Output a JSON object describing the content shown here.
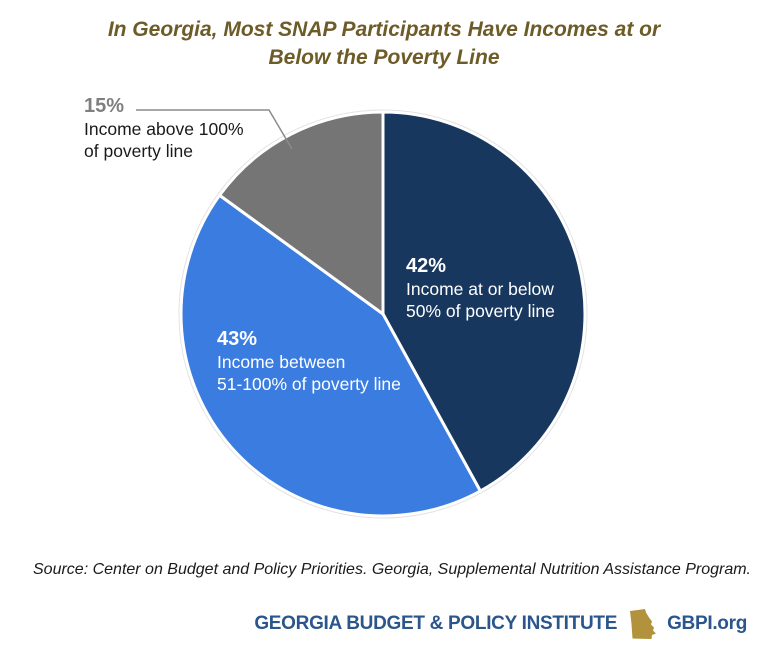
{
  "title": {
    "line1": "In Georgia, Most SNAP Participants Have Incomes at or",
    "line2": "Below the Poverty Line",
    "color": "#6d5b28"
  },
  "chart_data": {
    "type": "pie",
    "title": "In Georgia, Most SNAP Participants Have Incomes at or Below the Poverty Line",
    "start_angle_deg": 0,
    "direction": "clockwise",
    "divider_color": "#ffffff",
    "rim_color": "#e3e3e3",
    "slices": [
      {
        "id": "at-or-below-50",
        "value": 42,
        "pct_label": "42%",
        "label_lines": [
          "Income at or below",
          "50% of poverty line"
        ],
        "color": "#17375e",
        "label_placement": "inside"
      },
      {
        "id": "between-51-100",
        "value": 43,
        "pct_label": "43%",
        "label_lines": [
          "Income between",
          "51-100% of poverty line"
        ],
        "color": "#3a7ce0",
        "label_placement": "inside"
      },
      {
        "id": "above-100",
        "value": 15,
        "pct_label": "15%",
        "label_lines": [
          "Income above 100%",
          "of poverty line"
        ],
        "color": "#757575",
        "label_placement": "outside-callout"
      }
    ]
  },
  "source": "Source: Center on Budget and Policy Priorities. Georgia, Supplemental Nutrition Assistance Program.",
  "footer": {
    "org": "GEORGIA BUDGET & POLICY INSTITUTE",
    "site": "GBPI.org",
    "icon": "georgia-state-icon",
    "navy": "#2b568c",
    "gold": "#b2923c"
  }
}
